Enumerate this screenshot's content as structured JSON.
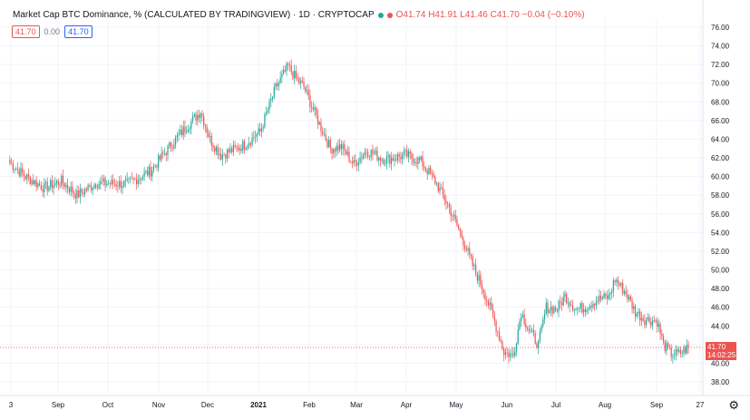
{
  "header": {
    "title": "Market Cap BTC Dominance, % (CALCULATED BY TRADINGVIEW) · 1D · CRYPTOCAP",
    "ohlc": "O41.74 H41.91 L41.46 C41.70 −0.04 (−0.10%)",
    "status_colors": [
      "#26a69a",
      "#ef5350"
    ]
  },
  "badges": {
    "left_value": "41.70",
    "mid_value": "0.00",
    "right_value": "41.70"
  },
  "last_price": {
    "value": "41.70",
    "countdown": "14:02:25"
  },
  "colors": {
    "up": "#26a69a",
    "down": "#ef5350",
    "grid": "#f0f3fa",
    "axis_text": "#131722"
  },
  "chart_data": {
    "type": "candlestick",
    "title": "Market Cap BTC Dominance, % (CALCULATED BY TRADINGVIEW)",
    "xlabel": "",
    "ylabel": "",
    "ylim": [
      36,
      78
    ],
    "x_ticks": [
      "3",
      "Sep",
      "Oct",
      "Nov",
      "Dec",
      "2021",
      "Feb",
      "Mar",
      "Apr",
      "May",
      "Jun",
      "Jul",
      "Aug",
      "Sep",
      "27"
    ],
    "y_ticks": [
      "76.00",
      "74.00",
      "72.00",
      "70.00",
      "68.00",
      "66.00",
      "64.00",
      "62.00",
      "60.00",
      "58.00",
      "56.00",
      "54.00",
      "52.00",
      "50.00",
      "48.00",
      "46.00",
      "44.00",
      "42.00",
      "40.00",
      "38.00"
    ],
    "last_close": 41.7,
    "grid": true,
    "legend": "none",
    "close_anchors": [
      [
        0,
        61.5
      ],
      [
        10,
        60.0
      ],
      [
        22,
        58.8
      ],
      [
        33,
        59.5
      ],
      [
        43,
        58.0
      ],
      [
        55,
        59.3
      ],
      [
        75,
        59.2
      ],
      [
        90,
        60.6
      ],
      [
        105,
        63.8
      ],
      [
        115,
        65.7
      ],
      [
        122,
        67.0
      ],
      [
        128,
        64.0
      ],
      [
        135,
        62.3
      ],
      [
        150,
        63.4
      ],
      [
        160,
        64.8
      ],
      [
        170,
        69.5
      ],
      [
        178,
        71.8
      ],
      [
        183,
        70.5
      ],
      [
        188,
        69.6
      ],
      [
        197,
        66.0
      ],
      [
        205,
        63.0
      ],
      [
        212,
        63.2
      ],
      [
        220,
        61.3
      ],
      [
        228,
        62.8
      ],
      [
        240,
        61.8
      ],
      [
        253,
        62.3
      ],
      [
        263,
        61.6
      ],
      [
        272,
        59.5
      ],
      [
        280,
        57.0
      ],
      [
        288,
        54.0
      ],
      [
        296,
        50.5
      ],
      [
        303,
        47.8
      ],
      [
        310,
        44.5
      ],
      [
        316,
        41.2
      ],
      [
        322,
        40.8
      ],
      [
        327,
        45.5
      ],
      [
        332,
        43.5
      ],
      [
        338,
        42.0
      ],
      [
        343,
        46.0
      ],
      [
        350,
        45.8
      ],
      [
        355,
        47.2
      ],
      [
        362,
        45.8
      ],
      [
        368,
        46.0
      ],
      [
        375,
        46.8
      ],
      [
        383,
        47.1
      ],
      [
        387,
        49.0
      ],
      [
        394,
        47.5
      ],
      [
        400,
        45.5
      ],
      [
        406,
        44.7
      ],
      [
        414,
        44.5
      ],
      [
        418,
        42.0
      ],
      [
        423,
        41.0
      ],
      [
        428,
        41.0
      ],
      [
        434,
        41.7
      ]
    ]
  }
}
